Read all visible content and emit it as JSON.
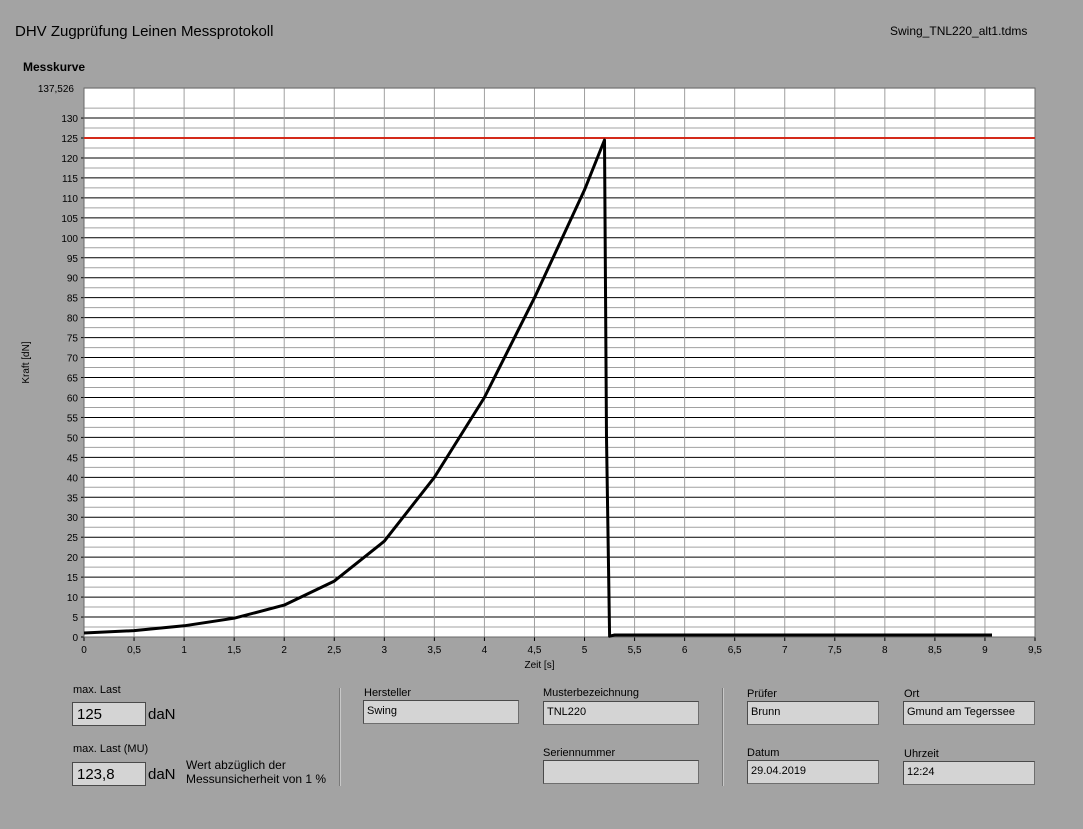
{
  "header": {
    "title": "DHV Zugprüfung Leinen Messprotokoll",
    "filename": "Swing_TNL220_alt1.tdms"
  },
  "chart_data": {
    "type": "line",
    "title": "Messkurve",
    "xlabel": "Zeit [s]",
    "ylabel": "Kraft [dN]",
    "xlim": [
      0,
      9.5
    ],
    "ylim": [
      0,
      137.526
    ],
    "ymax_label": "137,526",
    "x_ticks": [
      "0",
      "0,5",
      "1",
      "1,5",
      "2",
      "2,5",
      "3",
      "3,5",
      "4",
      "4,5",
      "5",
      "5,5",
      "6",
      "6,5",
      "7",
      "7,5",
      "8",
      "8,5",
      "9",
      "9,5"
    ],
    "y_ticks": [
      "0",
      "5",
      "10",
      "15",
      "20",
      "25",
      "30",
      "35",
      "40",
      "45",
      "50",
      "55",
      "60",
      "65",
      "70",
      "75",
      "80",
      "85",
      "90",
      "95",
      "100",
      "105",
      "110",
      "115",
      "120",
      "125",
      "130"
    ],
    "grid": true,
    "reference_line": {
      "y": 125,
      "color": "#d42a1a"
    },
    "series": [
      {
        "color": "#000000",
        "x": [
          0,
          0.5,
          1,
          1.5,
          2,
          2.5,
          3,
          3.5,
          4,
          4.5,
          5,
          5.2,
          5.22,
          5.25,
          5.3,
          6,
          7,
          8,
          9,
          9.07
        ],
        "y": [
          1,
          1.6,
          2.8,
          4.7,
          8,
          14,
          24,
          40,
          60,
          85,
          112,
          124.5,
          50,
          0.2,
          0.5,
          0.5,
          0.5,
          0.5,
          0.5,
          0.5
        ]
      }
    ]
  },
  "results": {
    "max_last_label": "max. Last",
    "max_last_value": "125",
    "max_last_unit": "daN",
    "max_last_mu_label": "max. Last (MU)",
    "max_last_mu_value": "123,8",
    "max_last_mu_unit": "daN",
    "note_line1": "Wert abzüglich der",
    "note_line2": "Messunsicherheit von 1 %"
  },
  "info": {
    "hersteller_label": "Hersteller",
    "hersteller_value": "Swing",
    "muster_label": "Musterbezeichnung",
    "muster_value": "TNL220",
    "serien_label": "Seriennummer",
    "serien_value": "",
    "pruefer_label": "Prüfer",
    "pruefer_value": "Brunn",
    "ort_label": "Ort",
    "ort_value": "Gmund am Tegerssee",
    "datum_label": "Datum",
    "datum_value": "29.04.2019",
    "uhrzeit_label": "Uhrzeit",
    "uhrzeit_value": "12:24"
  }
}
